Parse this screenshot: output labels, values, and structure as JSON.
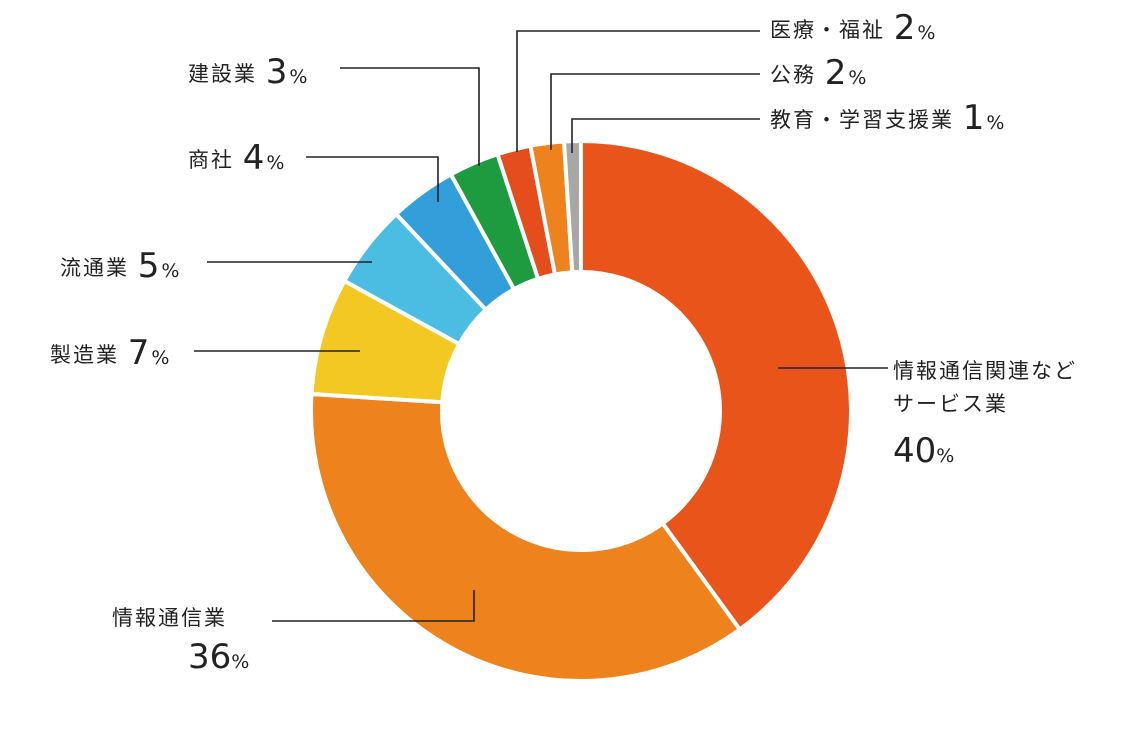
{
  "chart_data": {
    "type": "pie",
    "variant": "donut",
    "unit": "%",
    "slices": [
      {
        "label": "情報通信関連などサービス業",
        "label_lines": [
          "情報通信関連など",
          "サービス業"
        ],
        "value": 40,
        "color": "#E9541B"
      },
      {
        "label": "情報通信業",
        "label_lines": [
          "情報通信業"
        ],
        "value": 36,
        "color": "#EE821C"
      },
      {
        "label": "製造業",
        "label_lines": [
          "製造業"
        ],
        "value": 7,
        "color": "#F4C822"
      },
      {
        "label": "流通業",
        "label_lines": [
          "流通業"
        ],
        "value": 5,
        "color": "#4BBDE2"
      },
      {
        "label": "商社",
        "label_lines": [
          "商社"
        ],
        "value": 4,
        "color": "#339FDA"
      },
      {
        "label": "建設業",
        "label_lines": [
          "建設業"
        ],
        "value": 3,
        "color": "#1E9A3F"
      },
      {
        "label": "医療・福祉",
        "label_lines": [
          "医療・福祉"
        ],
        "value": 2,
        "color": "#E54D1C"
      },
      {
        "label": "公務",
        "label_lines": [
          "公務"
        ],
        "value": 2,
        "color": "#EE821C"
      },
      {
        "label": "教育・学習支援業",
        "label_lines": [
          "教育・学習支援業"
        ],
        "value": 1,
        "color": "#A7A7A7"
      }
    ]
  }
}
